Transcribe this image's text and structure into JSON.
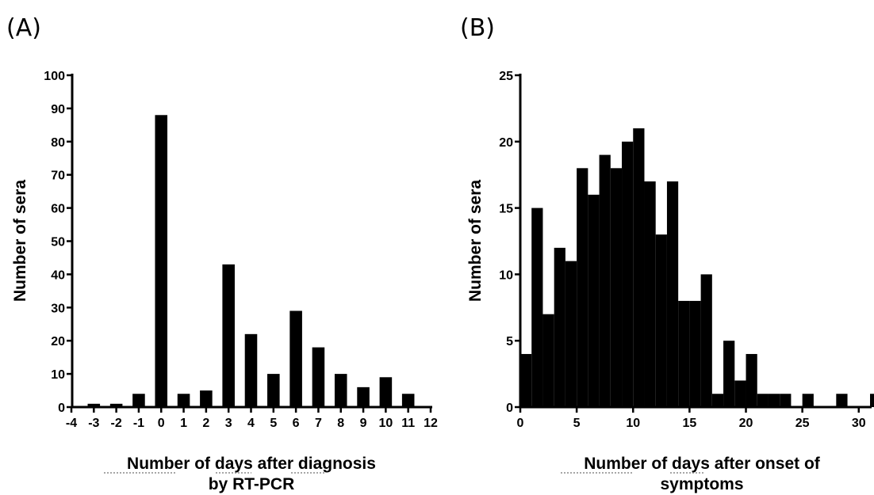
{
  "chart_data": [
    {
      "panel_label": "(A)",
      "type": "bar",
      "xlabel": [
        "Number of days after diagnosis",
        "by RT-PCR"
      ],
      "ylabel": "Number of sera",
      "xlim": [
        -4,
        12
      ],
      "ylim": [
        0,
        100
      ],
      "xticks": [
        -4,
        -3,
        -2,
        -1,
        0,
        1,
        2,
        3,
        4,
        5,
        6,
        7,
        8,
        9,
        10,
        11,
        12
      ],
      "yticks": [
        0,
        10,
        20,
        30,
        40,
        50,
        60,
        70,
        80,
        90,
        100
      ],
      "x": [
        -3,
        -2,
        -1,
        0,
        1,
        2,
        3,
        4,
        5,
        6,
        7,
        8,
        9,
        10,
        11
      ],
      "values": [
        1,
        1,
        4,
        88,
        4,
        5,
        43,
        22,
        10,
        29,
        18,
        10,
        6,
        9,
        4
      ],
      "grid": false
    },
    {
      "panel_label": "(B)",
      "type": "bar",
      "xlabel": [
        "Number of days after onset of",
        "symptoms"
      ],
      "ylabel": "Number of sera",
      "xlim": [
        0,
        31
      ],
      "ylim": [
        0,
        25
      ],
      "xticks": [
        0,
        5,
        10,
        15,
        20,
        25,
        30
      ],
      "yticks": [
        0,
        5,
        10,
        15,
        20,
        25
      ],
      "x": [
        0,
        1,
        2,
        3,
        4,
        5,
        6,
        7,
        8,
        9,
        10,
        11,
        12,
        13,
        14,
        15,
        16,
        17,
        18,
        19,
        20,
        21,
        22,
        23,
        25,
        28,
        31
      ],
      "values": [
        4,
        15,
        7,
        12,
        11,
        18,
        16,
        19,
        18,
        20,
        21,
        17,
        13,
        17,
        8,
        8,
        10,
        1,
        5,
        2,
        4,
        1,
        1,
        1,
        1,
        1,
        1
      ],
      "grid": false
    }
  ]
}
